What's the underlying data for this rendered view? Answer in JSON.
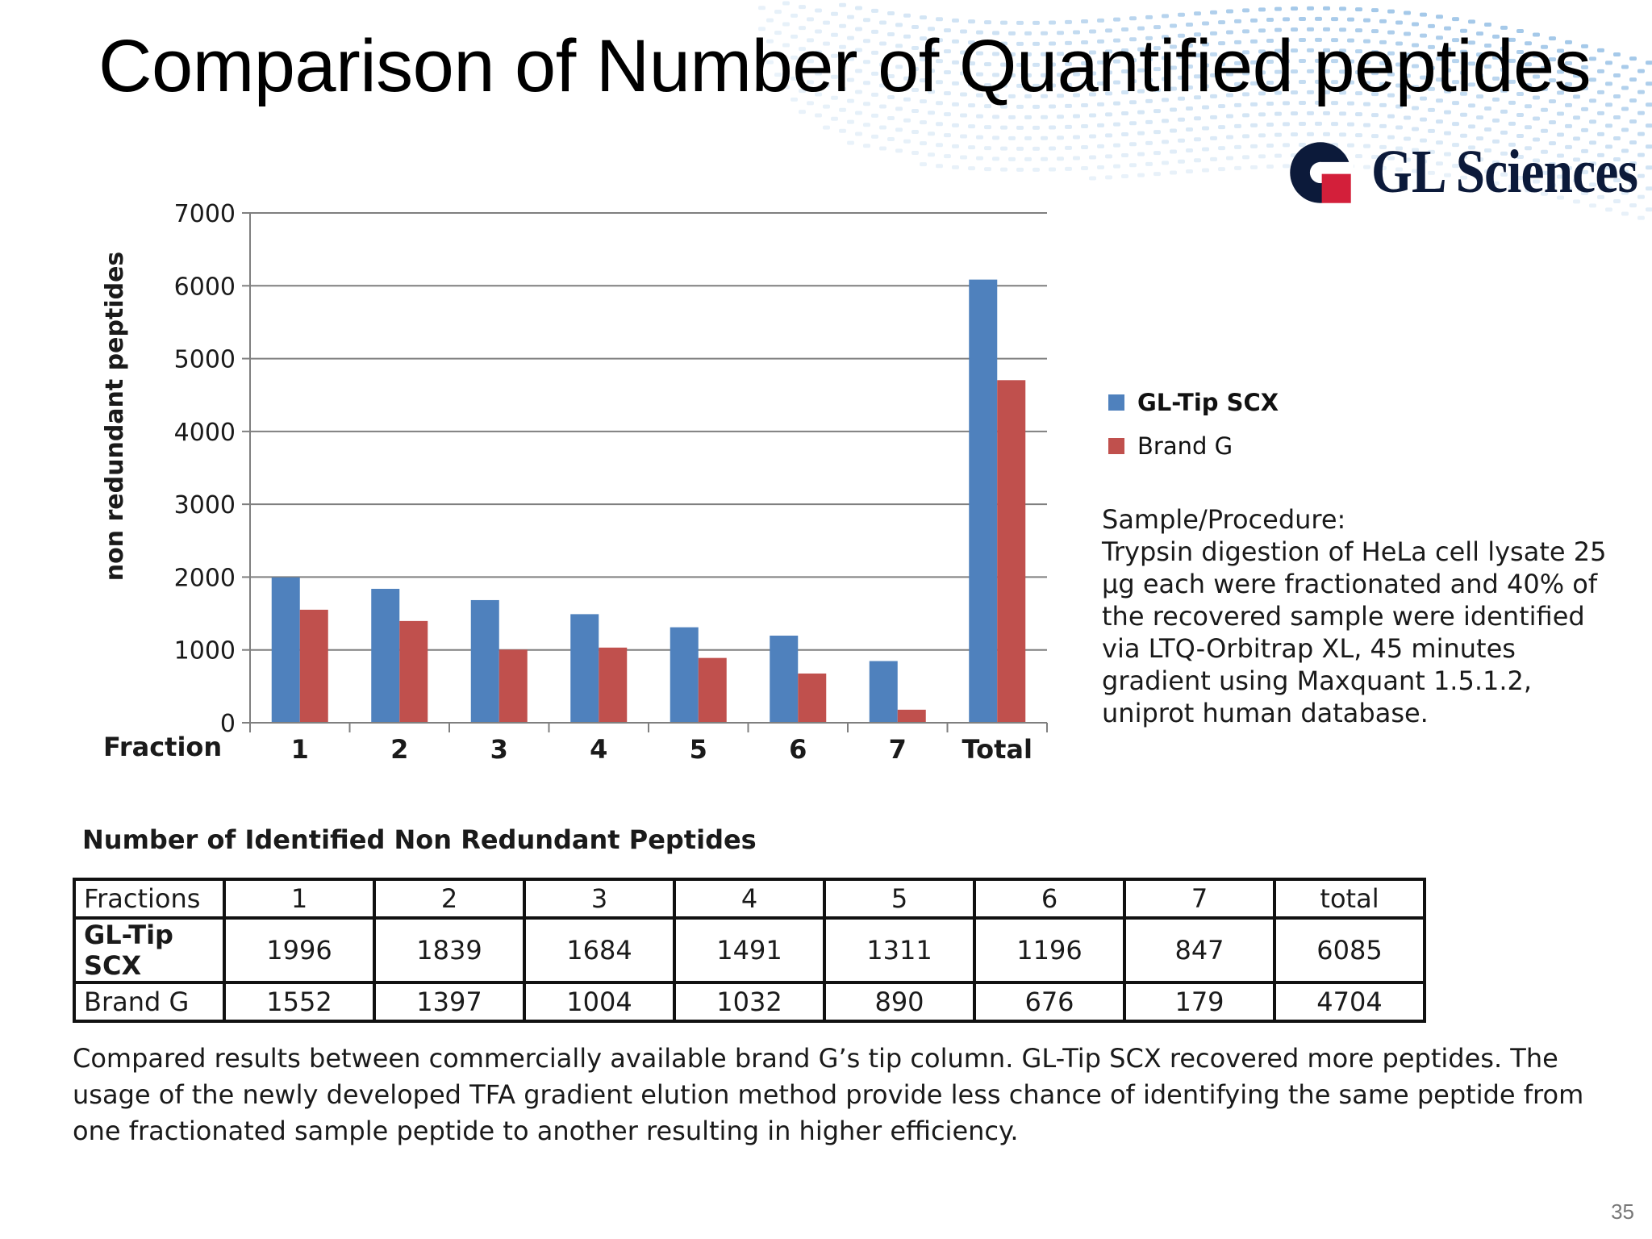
{
  "slide": {
    "title": "Comparison of Number of Quantified peptides",
    "page_number": "35",
    "logo_text": "GL Sciences"
  },
  "chart_data": {
    "type": "bar",
    "xlabel": "Fraction",
    "ylabel": "non redundant peptides",
    "categories": [
      "1",
      "2",
      "3",
      "4",
      "5",
      "6",
      "7",
      "Total"
    ],
    "series": [
      {
        "name": "GL-Tip SCX",
        "color": "#4f81bd",
        "values": [
          1996,
          1839,
          1684,
          1491,
          1311,
          1196,
          847,
          6085
        ]
      },
      {
        "name": "Brand G",
        "color": "#c0504d",
        "values": [
          1552,
          1397,
          1004,
          1032,
          890,
          676,
          179,
          4704
        ]
      }
    ],
    "ylim": [
      0,
      7000
    ],
    "yticks": [
      0,
      1000,
      2000,
      3000,
      4000,
      5000,
      6000,
      7000
    ],
    "grid": true,
    "legend_position": "right"
  },
  "procedure": {
    "heading": "Sample/Procedure:",
    "text": "Trypsin digestion of HeLa cell lysate 25 µg each were fractionated and 40% of the recovered sample were identified via LTQ-Orbitrap XL, 45 minutes gradient using Maxquant 1.5.1.2, uniprot human database."
  },
  "table": {
    "title": "Number of Identified Non Redundant Peptides",
    "header": [
      "Fractions",
      "1",
      "2",
      "3",
      "4",
      "5",
      "6",
      "7",
      "total"
    ],
    "rows": [
      [
        "GL-Tip SCX",
        "1996",
        "1839",
        "1684",
        "1491",
        "1311",
        "1196",
        "847",
        "6085"
      ],
      [
        "Brand G",
        "1552",
        "1397",
        "1004",
        "1032",
        "890",
        "676",
        "179",
        "4704"
      ]
    ]
  },
  "caption": "Compared results between commercially available brand G’s tip column. GL-Tip SCX recovered more peptides. The usage of the newly developed TFA gradient elution method provide less chance of identifying the same peptide from one fractionated sample peptide to another resulting in higher efficiency."
}
